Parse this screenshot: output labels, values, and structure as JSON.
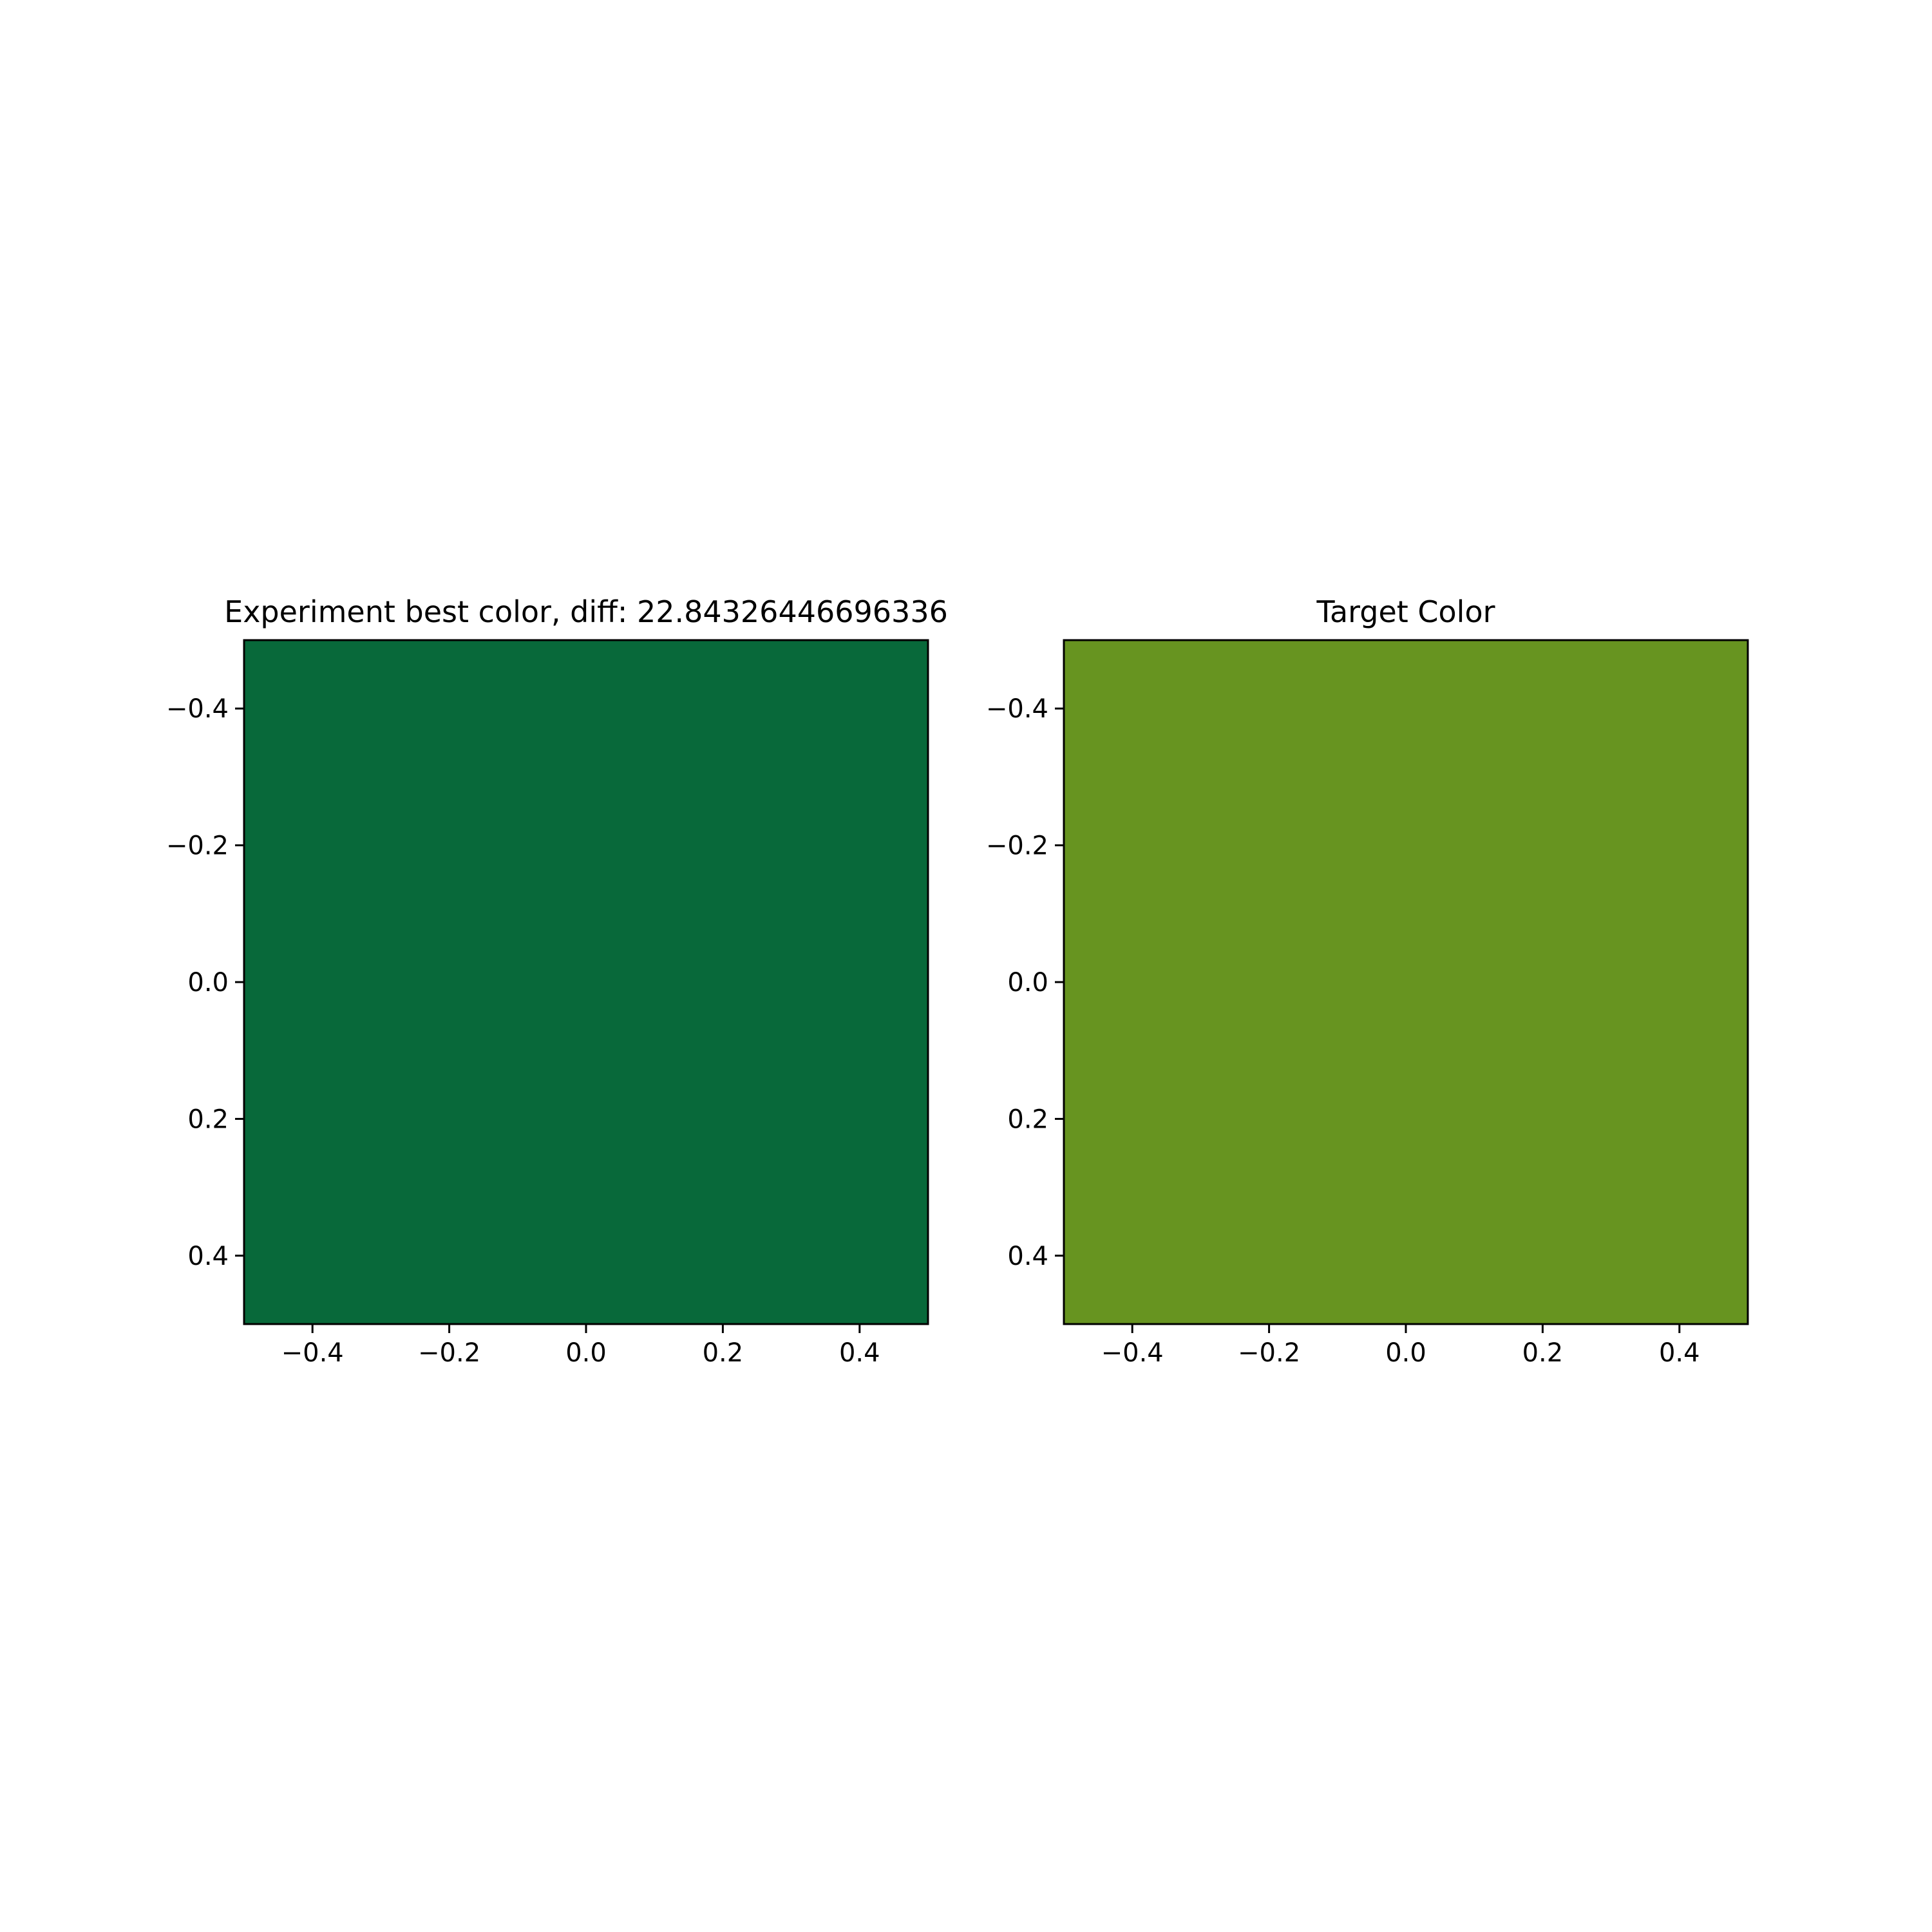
{
  "chart_data": [
    {
      "type": "heatmap",
      "title": "Experiment best color, diff: 22.84326446696336",
      "fill_color": "#08693a",
      "xlim": [
        -0.5,
        0.5
      ],
      "ylim": [
        0.5,
        -0.5
      ],
      "x_ticks": [
        -0.4,
        -0.2,
        0.0,
        0.2,
        0.4
      ],
      "y_ticks": [
        -0.4,
        -0.2,
        0.0,
        0.2,
        0.4
      ],
      "x_tick_labels": [
        "−0.4",
        "−0.2",
        "0.0",
        "0.2",
        "0.4"
      ],
      "y_tick_labels": [
        "−0.4",
        "−0.2",
        "0.0",
        "0.2",
        "0.4"
      ],
      "grid": false
    },
    {
      "type": "heatmap",
      "title": "Target Color",
      "fill_color": "#679420",
      "xlim": [
        -0.5,
        0.5
      ],
      "ylim": [
        0.5,
        -0.5
      ],
      "x_ticks": [
        -0.4,
        -0.2,
        0.0,
        0.2,
        0.4
      ],
      "y_ticks": [
        -0.4,
        -0.2,
        0.0,
        0.2,
        0.4
      ],
      "x_tick_labels": [
        "−0.4",
        "−0.2",
        "0.0",
        "0.2",
        "0.4"
      ],
      "y_tick_labels": [
        "−0.4",
        "−0.2",
        "0.0",
        "0.2",
        "0.4"
      ],
      "grid": false
    }
  ]
}
